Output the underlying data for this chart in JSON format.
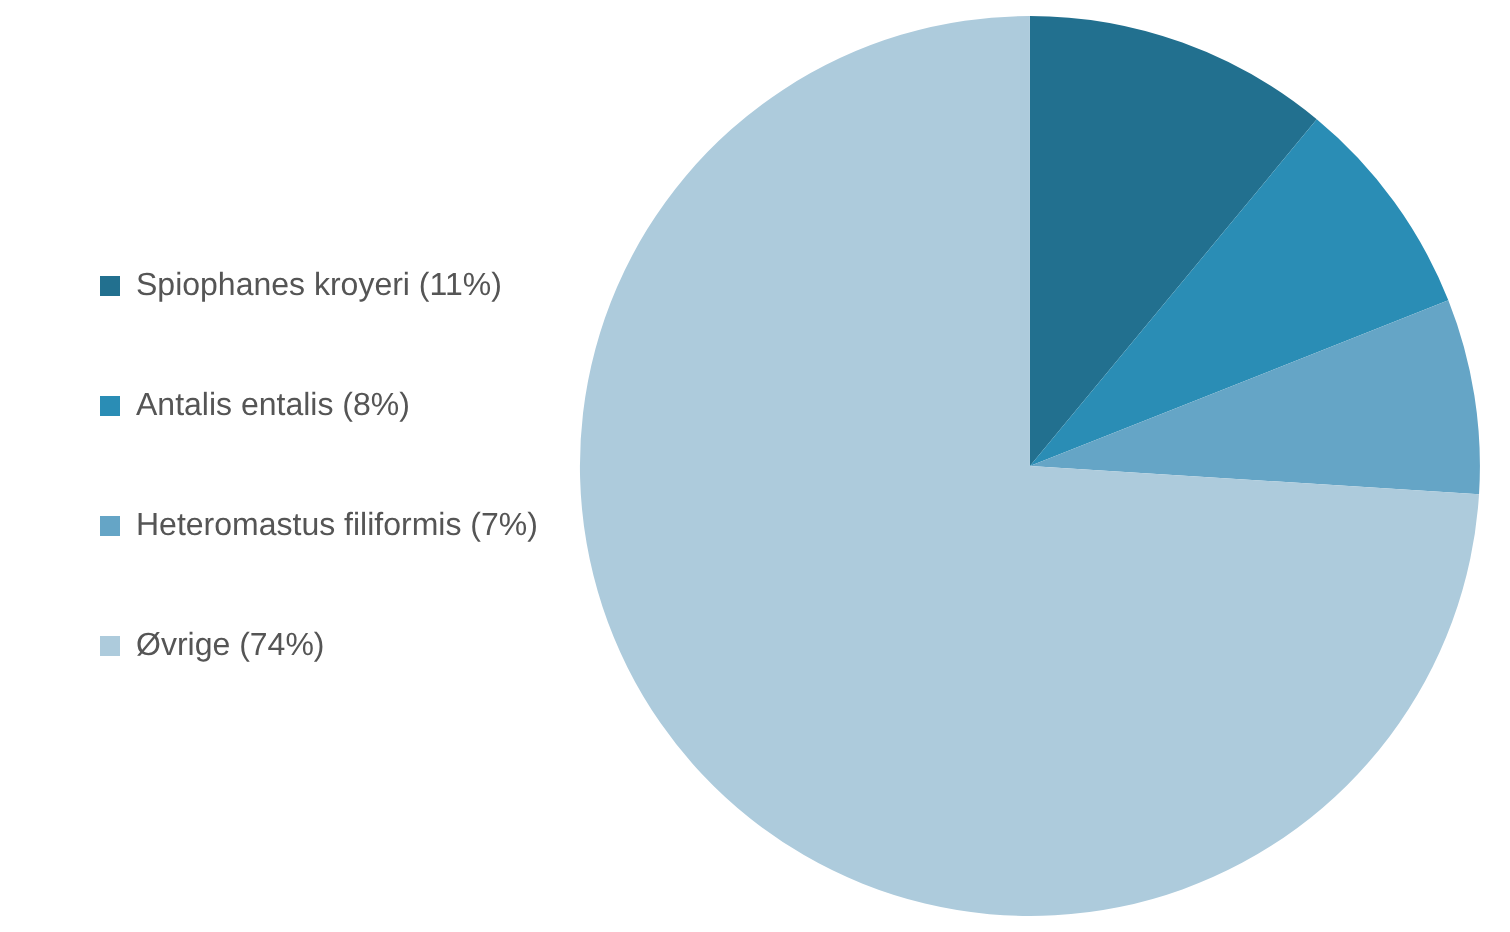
{
  "chart_data": {
    "type": "pie",
    "categories": [
      "Spiophanes kroyeri (11%)",
      "Antalis entalis (8%)",
      "Heteromastus filiformis (7%)",
      "Øvrige (74%)"
    ],
    "values": [
      11,
      8,
      7,
      74
    ],
    "colors": [
      "#22708f",
      "#2a8db5",
      "#65a5c6",
      "#adcbdc"
    ],
    "legend": "left"
  }
}
